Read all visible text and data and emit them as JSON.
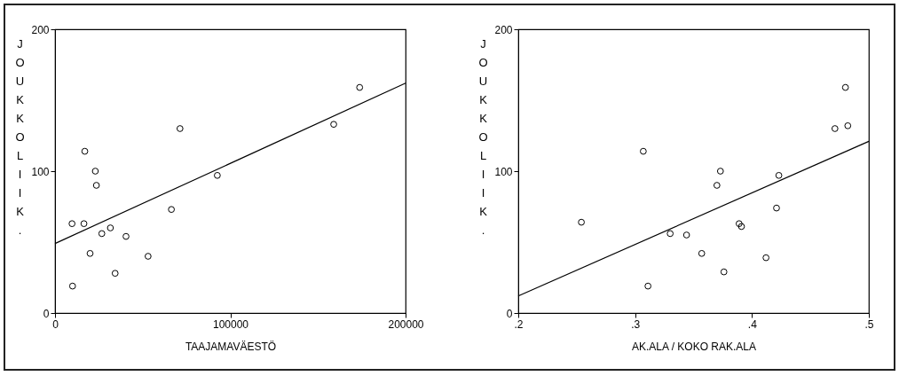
{
  "chart_data": [
    {
      "type": "scatter",
      "xlabel": "TAAJAMAVÄESTÖ",
      "ylabel": "JOUKKOLIIK.",
      "xlim": [
        0,
        200000
      ],
      "ylim": [
        0,
        200
      ],
      "xticks": [
        0,
        100000,
        200000
      ],
      "yticks": [
        0,
        100,
        200
      ],
      "grid": false,
      "marker": "circle",
      "series": [
        {
          "color": "#000000",
          "x": [
            10000,
            9700,
            16500,
            17000,
            20000,
            23000,
            23600,
            26700,
            31600,
            34300,
            40500,
            53100,
            66400,
            71300,
            92600,
            159000,
            173800
          ],
          "values": [
            19,
            63,
            63,
            114,
            42,
            100,
            90,
            56,
            60,
            28,
            54,
            40,
            73,
            130,
            97,
            133,
            159
          ]
        },
        {
          "type": "line",
          "color": "#000000",
          "x": [
            0,
            200000
          ],
          "values": [
            49,
            162
          ],
          "marker": "none"
        }
      ]
    },
    {
      "type": "scatter",
      "xlabel": "AK.ALA / KOKO RAK.ALA",
      "ylabel": "JOUKKOLIIK.",
      "xlim": [
        0.2,
        0.5
      ],
      "ylim": [
        0,
        200
      ],
      "xticks": [
        {
          "value": 0.2,
          "label": ".2"
        },
        {
          "value": 0.3,
          "label": ".3"
        },
        {
          "value": 0.4,
          "label": ".4"
        },
        {
          "value": 0.5,
          "label": ".5"
        }
      ],
      "yticks": [
        0,
        100,
        200
      ],
      "grid": false,
      "marker": "circle",
      "series": [
        {
          "color": "#000000",
          "x": [
            0.254,
            0.307,
            0.311,
            0.33,
            0.344,
            0.357,
            0.37,
            0.373,
            0.376,
            0.389,
            0.391,
            0.412,
            0.421,
            0.423,
            0.471,
            0.48,
            0.482
          ],
          "values": [
            64,
            114,
            19,
            56,
            55,
            42,
            90,
            100,
            29,
            63,
            61,
            39,
            74,
            97,
            130,
            159,
            132
          ]
        },
        {
          "type": "line",
          "color": "#000000",
          "x": [
            0.2,
            0.5
          ],
          "values": [
            12,
            121
          ],
          "marker": "none"
        }
      ]
    }
  ]
}
